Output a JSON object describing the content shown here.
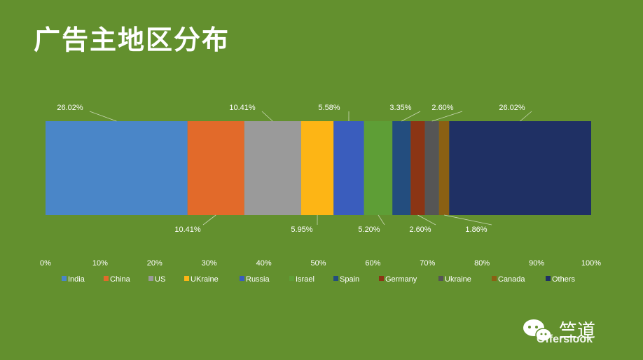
{
  "title": "广告主地区分布",
  "watermark": {
    "name": "竺道",
    "sub": "Offerslook"
  },
  "chart_data": {
    "type": "bar",
    "subtype": "stacked-100-horizontal",
    "series": [
      {
        "name": "India",
        "value": 26.02,
        "label": "26.02%",
        "color": "#4a86c8",
        "label_pos": "above"
      },
      {
        "name": "China",
        "value": 10.41,
        "label": "10.41%",
        "color": "#e26a2a",
        "label_pos": "below"
      },
      {
        "name": "US",
        "value": 10.41,
        "label": "10.41%",
        "color": "#9a9a9a",
        "label_pos": "above"
      },
      {
        "name": "UKraine",
        "value": 5.95,
        "label": "5.95%",
        "color": "#fdb515",
        "label_pos": "below"
      },
      {
        "name": "Russia",
        "value": 5.58,
        "label": "5.58%",
        "color": "#3a5dbd",
        "label_pos": "above"
      },
      {
        "name": "Israel",
        "value": 5.2,
        "label": "5.20%",
        "color": "#5e9e36",
        "label_pos": "below"
      },
      {
        "name": "Spain",
        "value": 3.35,
        "label": "3.35%",
        "color": "#234d7e",
        "label_pos": "above"
      },
      {
        "name": "Germany",
        "value": 2.6,
        "label": "2.60%",
        "color": "#8b3514",
        "label_pos": "below"
      },
      {
        "name": "Ukraine",
        "value": 2.6,
        "label": "2.60%",
        "color": "#555555",
        "label_pos": "above"
      },
      {
        "name": "Canada",
        "value": 1.86,
        "label": "1.86%",
        "color": "#8a6013",
        "label_pos": "below"
      },
      {
        "name": "Others",
        "value": 26.02,
        "label": "26.02%",
        "color": "#1f3064",
        "label_pos": "above"
      }
    ],
    "xlim": [
      0,
      100
    ],
    "x_ticks": [
      "0%",
      "10%",
      "20%",
      "30%",
      "40%",
      "50%",
      "60%",
      "70%",
      "80%",
      "90%",
      "100%"
    ],
    "legend_position": "bottom",
    "grid": false
  }
}
